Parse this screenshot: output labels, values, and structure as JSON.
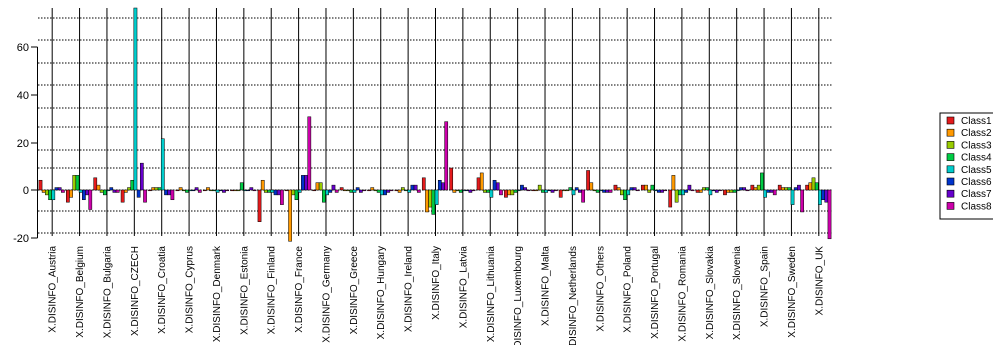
{
  "chart_data": {
    "type": "bar",
    "categories": [
      "X.DISINFO_Austria",
      "X.DISINFO_Belgium",
      "X.DISINFO_Bulgaria",
      "X.DISINFO_CZECH",
      "X.DISINFO_Croatia",
      "X.DISINFO_Cyprus",
      "X.DISINFO_Denmark",
      "X.DISINFO_Estonia",
      "X.DISINFO_Finland",
      "X.DISINFO_France",
      "X.DISINFO_Germany",
      "X.DISINFO_Greece",
      "X.DISINFO_Hungary",
      "X.DISINFO_Ireland",
      "X.DISINFO_Italy",
      "X.DISINFO_Latvia",
      "X.DISINFO_Lithuania",
      "X.DISINFO_Luxembourg",
      "X.DISINFO_Malta",
      "X.DISINFO_Netherlands",
      "X.DISINFO_Others",
      "X.DISINFO_Poland",
      "X.DISINFO_Portugal",
      "X.DISINFO_Romania",
      "X.DISINFO_Slovakia",
      "X.DISINFO_Slovenia",
      "X.DISINFO_Spain",
      "X.DISINFO_Sweden",
      "X.DISINFO_UK"
    ],
    "series": [
      {
        "name": "Class1",
        "color": "#e31a1c",
        "values": [
          4,
          -5,
          5,
          -5,
          0,
          0,
          0,
          0,
          -13,
          0,
          0,
          1,
          0,
          0,
          5,
          9,
          5,
          -3,
          0,
          -3,
          8,
          2,
          2,
          -7,
          -1,
          -2,
          2,
          2,
          2
        ]
      },
      {
        "name": "Class2",
        "color": "#ff9900",
        "values": [
          -1,
          -3,
          2,
          -1,
          1,
          1,
          1,
          0,
          4,
          -21,
          3,
          0,
          1,
          -1,
          -9,
          -1,
          7,
          -2,
          0,
          0,
          3,
          1,
          2,
          6,
          -1,
          -1,
          1,
          1,
          3
        ]
      },
      {
        "name": "Class3",
        "color": "#99cc00",
        "values": [
          -2,
          6,
          -1,
          1,
          1,
          0,
          0,
          0,
          -1,
          -2,
          3,
          0,
          0,
          1,
          -7,
          0,
          -1,
          -2,
          2,
          0,
          0,
          -2,
          -1,
          -5,
          1,
          -1,
          2,
          1,
          5
        ]
      },
      {
        "name": "Class4",
        "color": "#00cc44",
        "values": [
          -4,
          6,
          -2,
          4,
          1,
          -1,
          0,
          3,
          -1,
          -4,
          -5,
          -1,
          -1,
          0,
          -10,
          -1,
          -1,
          -1,
          -1,
          1,
          -1,
          -4,
          2,
          -2,
          1,
          -1,
          7,
          1,
          3
        ]
      },
      {
        "name": "Class5",
        "color": "#00cccc",
        "values": [
          -4,
          -1,
          0,
          76,
          21,
          0,
          -1,
          0,
          -1,
          -1,
          -2,
          -1,
          -2,
          -1,
          -6,
          0,
          -3,
          0,
          -1,
          -2,
          0,
          -2,
          0,
          -2,
          -2,
          0,
          -3,
          -6,
          -6
        ]
      },
      {
        "name": "Class6",
        "color": "#0033cc",
        "values": [
          1,
          -4,
          1,
          -3,
          -2,
          0,
          0,
          0,
          -2,
          6,
          -1,
          1,
          -2,
          2,
          4,
          0,
          4,
          2,
          0,
          1,
          -1,
          1,
          -1,
          -1,
          0,
          1,
          -1,
          1,
          -4
        ]
      },
      {
        "name": "Class7",
        "color": "#6600cc",
        "values": [
          1,
          -2,
          -1,
          11,
          -2,
          1,
          -1,
          1,
          -2,
          6,
          2,
          -1,
          -1,
          2,
          3,
          -1,
          3,
          1,
          -1,
          -1,
          -1,
          1,
          -1,
          2,
          -1,
          1,
          -1,
          2,
          -5
        ]
      },
      {
        "name": "Class8",
        "color": "#cc00aa",
        "values": [
          -1,
          -8,
          -1,
          -5,
          -4,
          -1,
          0,
          0,
          -6,
          30,
          -1,
          0,
          0,
          -1,
          28,
          0,
          -2,
          0,
          0,
          -5,
          -1,
          0,
          0,
          0,
          0,
          0,
          -2,
          -9,
          -20
        ]
      }
    ],
    "yticks": [
      -20,
      0,
      20,
      40,
      60
    ],
    "ylim": [
      -20.5,
      76
    ],
    "grid": true,
    "legend": "right"
  }
}
